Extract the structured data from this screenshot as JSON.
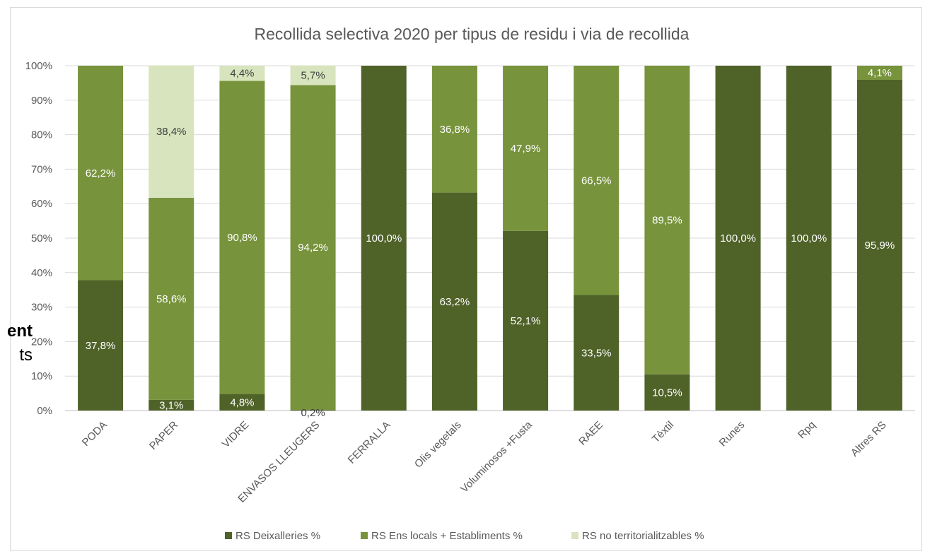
{
  "side_text": {
    "line1": "ent",
    "line2": "ts"
  },
  "chart_data": {
    "type": "bar",
    "stacked": "percent",
    "title": "Recollida selectiva 2020 per tipus de residu i via de recollida",
    "xlabel": "",
    "ylabel": "",
    "ylim": [
      0,
      100
    ],
    "y_ticks": [
      "0%",
      "10%",
      "20%",
      "30%",
      "40%",
      "50%",
      "60%",
      "70%",
      "80%",
      "90%",
      "100%"
    ],
    "grid": true,
    "legend_position": "bottom",
    "categories": [
      "PODA",
      "PAPER",
      "VIDRE",
      "ENVASOS LLEUGERS",
      "FERRALLA",
      "Olis vegetals",
      "Voluminosos +Fusta",
      "RAEE",
      "Tèxtil",
      "Runes",
      "Rpq",
      "Altres RS"
    ],
    "series": [
      {
        "name": "RS Deixalleries %",
        "color": "#4f6228",
        "label_color": "#ffffff",
        "values": [
          37.8,
          3.1,
          4.8,
          0.2,
          100.0,
          63.2,
          52.1,
          33.5,
          10.5,
          100.0,
          100.0,
          95.9
        ],
        "labels": [
          "37,8%",
          "3,1%",
          "4,8%",
          "0,2%",
          "100,0%",
          "63,2%",
          "52,1%",
          "33,5%",
          "10,5%",
          "100,0%",
          "100,0%",
          "95,9%"
        ]
      },
      {
        "name": "RS Ens locals + Establiments %",
        "color": "#77933c",
        "label_color": "#ffffff",
        "values": [
          62.2,
          58.6,
          90.8,
          94.2,
          0,
          36.8,
          47.9,
          66.5,
          89.5,
          0,
          0,
          4.1
        ],
        "labels": [
          "62,2%",
          "58,6%",
          "90,8%",
          "94,2%",
          "",
          "36,8%",
          "47,9%",
          "66,5%",
          "89,5%",
          "",
          "",
          "4,1%"
        ]
      },
      {
        "name": "RS no territorialitzables %",
        "color": "#d7e4bd",
        "label_color": "#404040",
        "values": [
          0,
          38.4,
          4.4,
          5.7,
          0,
          0,
          0,
          0,
          0,
          0,
          0,
          0
        ],
        "labels": [
          "",
          "38,4%",
          "4,4%",
          "5,7%",
          "",
          "",
          "",
          "",
          "",
          "",
          "",
          ""
        ]
      }
    ]
  }
}
